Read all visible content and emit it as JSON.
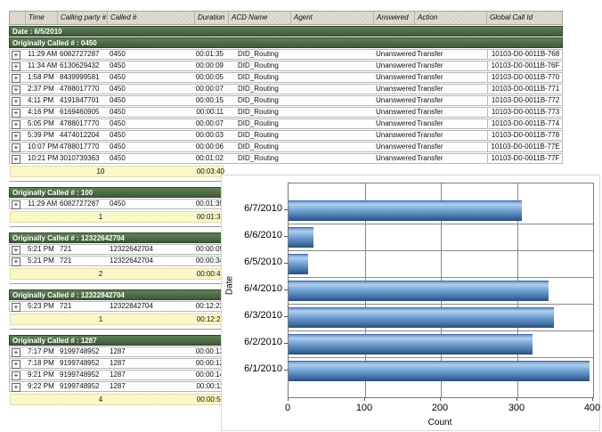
{
  "table": {
    "columns": [
      "Time",
      "Calling party #",
      "Called #",
      "Duration",
      "ACD Name",
      "Agent",
      "Answered",
      "Action",
      "Global Call Id"
    ],
    "date_label": "Date : 6/5/2010",
    "groups": [
      {
        "header": "Originally Called # : 0450",
        "narrow": false,
        "rows": [
          [
            "11:29 AM",
            "6082727287",
            "0450",
            "00:01:35",
            "DID_Routing",
            "",
            "Unanswered",
            "Transfer",
            "10103-D0-0011B-768"
          ],
          [
            "11:34 AM",
            "6130629432",
            "0450",
            "00:00:09",
            "DID_Routing",
            "",
            "Unanswered",
            "Transfer",
            "10103-D0-0011B-76F"
          ],
          [
            "1:58 PM",
            "8439999581",
            "0450",
            "00:00:05",
            "DID_Routing",
            "",
            "Unanswered",
            "Transfer",
            "10103-D0-0011B-770"
          ],
          [
            "2:37 PM",
            "4788017770",
            "0450",
            "00:00:07",
            "DID_Routing",
            "",
            "Unanswered",
            "Transfer",
            "10103-D0-0011B-771"
          ],
          [
            "4:11 PM",
            "4191847701",
            "0450",
            "00:00:15",
            "DID_Routing",
            "",
            "Unanswered",
            "Transfer",
            "10103-D0-0011B-772"
          ],
          [
            "4:16 PM",
            "6169460905",
            "0450",
            "00:00:11",
            "DID_Routing",
            "",
            "Unanswered",
            "Transfer",
            "10103-D0-0011B-773"
          ],
          [
            "5:05 PM",
            "4788017770",
            "0450",
            "00:00:07",
            "DID_Routing",
            "",
            "Unanswered",
            "Transfer",
            "10103-D0-0011B-774"
          ],
          [
            "5:39 PM",
            "4474012204",
            "0450",
            "00:00:03",
            "DID_Routing",
            "",
            "Unanswered",
            "Transfer",
            "10103-D0-0011B-778"
          ],
          [
            "10:07 PM",
            "4788017770",
            "0450",
            "00:00:06",
            "DID_Routing",
            "",
            "Unanswered",
            "Transfer",
            "10103-D0-0011B-77E"
          ],
          [
            "10:21 PM",
            "3010739363",
            "0450",
            "00:01:02",
            "DID_Routing",
            "",
            "Unanswered",
            "Transfer",
            "10103-D0-0011B-77F"
          ]
        ],
        "summary": {
          "count": "10",
          "total": "00:03:40"
        }
      },
      {
        "header": "Originally Called # : 100",
        "narrow": true,
        "rows": [
          [
            "11:29 AM",
            "6082727287",
            "0450",
            "00:01:35"
          ]
        ],
        "summary": {
          "count": "1",
          "total": "00:01:35"
        }
      },
      {
        "header": "Originally Called # : 12322642704",
        "narrow": true,
        "rows": [
          [
            "5:21 PM",
            "721",
            "12322642704",
            "00:00:09"
          ],
          [
            "5:21 PM",
            "721",
            "12322642704",
            "00:00:34"
          ]
        ],
        "summary": {
          "count": "2",
          "total": "00:00:43"
        }
      },
      {
        "header": "Originally Called # : 12322842704",
        "narrow": true,
        "rows": [
          [
            "5:23 PM",
            "721",
            "12322842704",
            "00:12:23"
          ]
        ],
        "summary": {
          "count": "1",
          "total": "00:12:23"
        }
      },
      {
        "header": "Originally Called # : 1287",
        "narrow": true,
        "rows": [
          [
            "7:17 PM",
            "9199748952",
            "1287",
            "00:00:13"
          ],
          [
            "7:18 PM",
            "9199748952",
            "1287",
            "00:00:12"
          ],
          [
            "9:21 PM",
            "9199748952",
            "1287",
            "00:00:14"
          ],
          [
            "9:22 PM",
            "9199748952",
            "1287",
            "00:00:11"
          ]
        ],
        "summary": {
          "count": "4",
          "total": "00:00:50"
        }
      }
    ]
  },
  "chart_data": {
    "type": "bar",
    "orientation": "horizontal",
    "title": "",
    "categories": [
      "6/7/2010",
      "6/6/2010",
      "6/5/2010",
      "6/4/2010",
      "6/3/2010",
      "6/2/2010",
      "6/1/2010"
    ],
    "values": [
      307,
      33,
      26,
      341,
      349,
      320,
      395
    ],
    "xlabel": "Count",
    "ylabel": "Date",
    "xlim": [
      0,
      400
    ],
    "xticks": [
      0,
      100,
      200,
      300,
      400
    ],
    "grid": true,
    "legend_position": "none",
    "bar_color": "#5B8FC9",
    "bar_gradient": [
      "#AED0F0",
      "#7AA6D8",
      "#2A4E78"
    ],
    "grid_color": "#8A8A8A"
  },
  "icons": {
    "expander": "+"
  }
}
